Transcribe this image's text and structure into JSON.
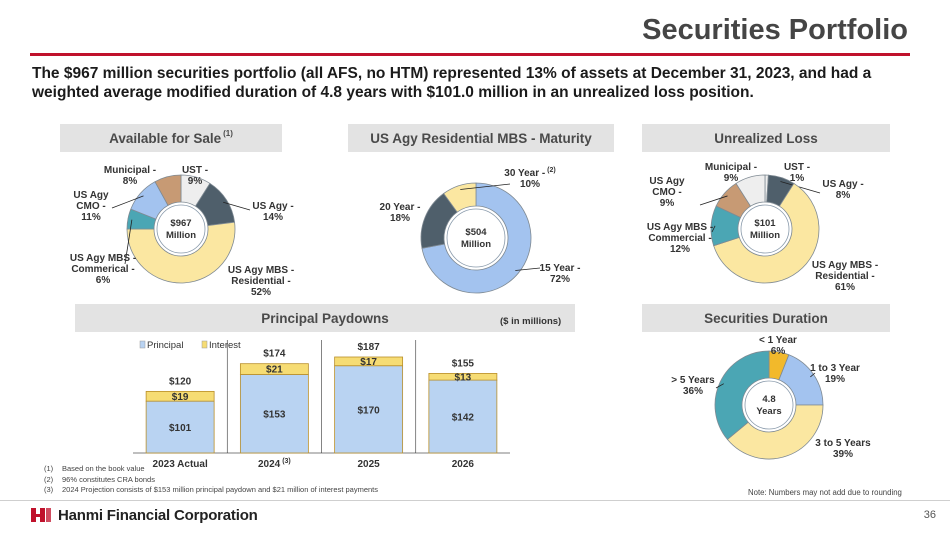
{
  "header": {
    "title": "Securities Portfolio",
    "subtitle": "The $967 million securities portfolio (all AFS, no HTM) represented 13% of assets at December 31, 2023, and had a weighted average modified duration of 4.8 years with $101.0 million in an unrealized loss position."
  },
  "panels": {
    "afs_title": "Available for Sale",
    "afs_sup": "(1)",
    "mbs_title": "US Agy Residential MBS - Maturity",
    "loss_title": "Unrealized Loss",
    "paydown_title": "Principal Paydowns",
    "paydown_units": "($ in millions)",
    "duration_title": "Securities Duration"
  },
  "colors": {
    "accent": "#c0122c",
    "slate": "#4f5f6b",
    "gold": "#f2b92b",
    "cream": "#fbe7a1",
    "teal": "#4ba6b4",
    "lightblue": "#a3c3ef",
    "tan": "#c79a74",
    "grey": "#eeeeee",
    "bar_principal": "#b9d3f2",
    "bar_interest": "#f6dc74"
  },
  "chart_data": [
    {
      "type": "pie",
      "name": "Available for Sale",
      "center_value": "$967",
      "center_unit": "Million",
      "slices": [
        {
          "label": "UST -",
          "value_text": "9%",
          "value": 9,
          "color": "#eeeeee"
        },
        {
          "label": "US Agy -",
          "value_text": "14%",
          "value": 14,
          "color": "#4f5f6b"
        },
        {
          "label": "US Agy MBS - Residential -",
          "value_text": "52%",
          "value": 52,
          "color": "#fbe7a1"
        },
        {
          "label": "US Agy MBS - Commerical -",
          "value_text": "6%",
          "value": 6,
          "color": "#4ba6b4"
        },
        {
          "label": "US Agy CMO -",
          "value_text": "11%",
          "value": 11,
          "color": "#a3c3ef"
        },
        {
          "label": "Municipal -",
          "value_text": "8%",
          "value": 8,
          "color": "#c79a74"
        }
      ]
    },
    {
      "type": "pie",
      "name": "US Agy Residential MBS - Maturity",
      "center_value": "$504",
      "center_unit": "Million",
      "slices": [
        {
          "label": "15 Year -",
          "value_text": "72%",
          "value": 72,
          "color": "#a3c3ef"
        },
        {
          "label": "20 Year -",
          "value_text": "18%",
          "value": 18,
          "color": "#4f5f6b"
        },
        {
          "label": "30 Year -",
          "label_sup": "(2)",
          "value_text": "10%",
          "value": 10,
          "color": "#fbe7a1"
        }
      ]
    },
    {
      "type": "pie",
      "name": "Unrealized Loss",
      "center_value": "$101",
      "center_unit": "Million",
      "slices": [
        {
          "label": "UST -",
          "value_text": "1%",
          "value": 1,
          "color": "#eeeeee"
        },
        {
          "label": "US Agy -",
          "value_text": "8%",
          "value": 8,
          "color": "#4f5f6b"
        },
        {
          "label": "US Agy MBS - Residential -",
          "value_text": "61%",
          "value": 61,
          "color": "#fbe7a1"
        },
        {
          "label": "US Agy MBS - Commercial -",
          "value_text": "12%",
          "value": 12,
          "color": "#4ba6b4"
        },
        {
          "label": "US Agy CMO -",
          "value_text": "9%",
          "value": 9,
          "color": "#c79a74"
        },
        {
          "label": "Municipal -",
          "value_text": "9%",
          "value": 9,
          "color": "#eeeeee"
        }
      ]
    },
    {
      "type": "bar",
      "name": "Principal Paydowns",
      "stacked": true,
      "categories": [
        "2023 Actual",
        "2024",
        "2025",
        "2026"
      ],
      "category_sup": [
        "",
        "(3)",
        "",
        ""
      ],
      "series": [
        {
          "name": "Principal",
          "values": [
            101,
            153,
            170,
            142
          ],
          "labels": [
            "$101",
            "$153",
            "$170",
            "$142"
          ],
          "color": "#b9d3f2"
        },
        {
          "name": "Interest",
          "values": [
            19,
            21,
            17,
            13
          ],
          "labels": [
            "$19",
            "$21",
            "$17",
            "$13"
          ],
          "color": "#f6dc74"
        }
      ],
      "totals": [
        "$120",
        "$174",
        "$187",
        "$155"
      ],
      "ylim": [
        0,
        187
      ],
      "legend": "top-left"
    },
    {
      "type": "pie",
      "name": "Securities Duration",
      "center_value": "4.8",
      "center_unit": "Years",
      "slices": [
        {
          "label": "< 1 Year",
          "value_text": "6%",
          "value": 6,
          "color": "#f2b92b"
        },
        {
          "label": "1 to 3 Year",
          "value_text": "19%",
          "value": 19,
          "color": "#a3c3ef"
        },
        {
          "label": "3 to 5 Years",
          "value_text": "39%",
          "value": 39,
          "color": "#fbe7a1"
        },
        {
          "label": "> 5 Years",
          "value_text": "36%",
          "value": 36,
          "color": "#4ba6b4"
        }
      ]
    }
  ],
  "footnotes": [
    {
      "num": "(1)",
      "text": "Based on the book value"
    },
    {
      "num": "(2)",
      "text": "96% constitutes CRA bonds"
    },
    {
      "num": "(3)",
      "text": "2024 Projection consists of $153 million principal paydown and $21 million of interest payments"
    }
  ],
  "rounding_note": "Note: Numbers may not add due to rounding",
  "footer": {
    "company": "Hanmi Financial Corporation",
    "page": "36"
  }
}
